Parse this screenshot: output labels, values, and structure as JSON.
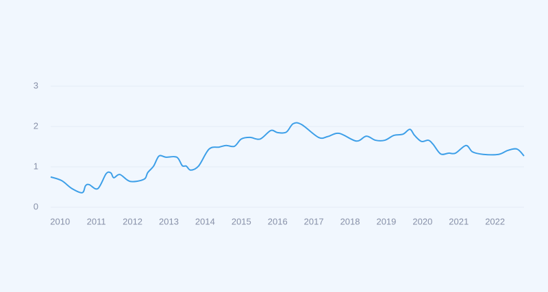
{
  "chart_data": {
    "type": "line",
    "color": "#3d9fe8",
    "grid": true,
    "x": [
      2009.74,
      2010.04,
      2010.33,
      2010.61,
      2010.7,
      2010.8,
      2011.04,
      2011.27,
      2011.4,
      2011.48,
      2011.65,
      2011.93,
      2012.31,
      2012.42,
      2012.58,
      2012.73,
      2012.92,
      2013.22,
      2013.37,
      2013.48,
      2013.6,
      2013.82,
      2014.11,
      2014.39,
      2014.58,
      2014.81,
      2015.0,
      2015.24,
      2015.52,
      2015.81,
      2016.0,
      2016.24,
      2016.43,
      2016.66,
      2017.13,
      2017.38,
      2017.7,
      2018.17,
      2018.45,
      2018.7,
      2018.96,
      2019.21,
      2019.46,
      2019.65,
      2019.78,
      2019.97,
      2020.16,
      2020.29,
      2020.5,
      2020.72,
      2020.91,
      2021.2,
      2021.38,
      2021.67,
      2022.1,
      2022.36,
      2022.61,
      2022.8
    ],
    "values": [
      0.75,
      0.66,
      0.46,
      0.36,
      0.53,
      0.56,
      0.46,
      0.83,
      0.85,
      0.73,
      0.81,
      0.64,
      0.69,
      0.86,
      1.02,
      1.27,
      1.24,
      1.24,
      1.03,
      1.02,
      0.92,
      1.02,
      1.44,
      1.49,
      1.53,
      1.51,
      1.69,
      1.73,
      1.69,
      1.9,
      1.85,
      1.86,
      2.07,
      2.05,
      1.73,
      1.75,
      1.83,
      1.64,
      1.76,
      1.66,
      1.66,
      1.78,
      1.81,
      1.93,
      1.78,
      1.63,
      1.66,
      1.56,
      1.32,
      1.34,
      1.34,
      1.53,
      1.37,
      1.31,
      1.31,
      1.41,
      1.44,
      1.27
    ],
    "xlim": [
      2009.74,
      2022.8
    ],
    "xticks": [
      2010,
      2011,
      2012,
      2013,
      2014,
      2015,
      2016,
      2017,
      2018,
      2019,
      2020,
      2021,
      2022
    ],
    "ylim": [
      0,
      3
    ],
    "yticks": [
      0,
      1,
      2,
      3
    ]
  }
}
